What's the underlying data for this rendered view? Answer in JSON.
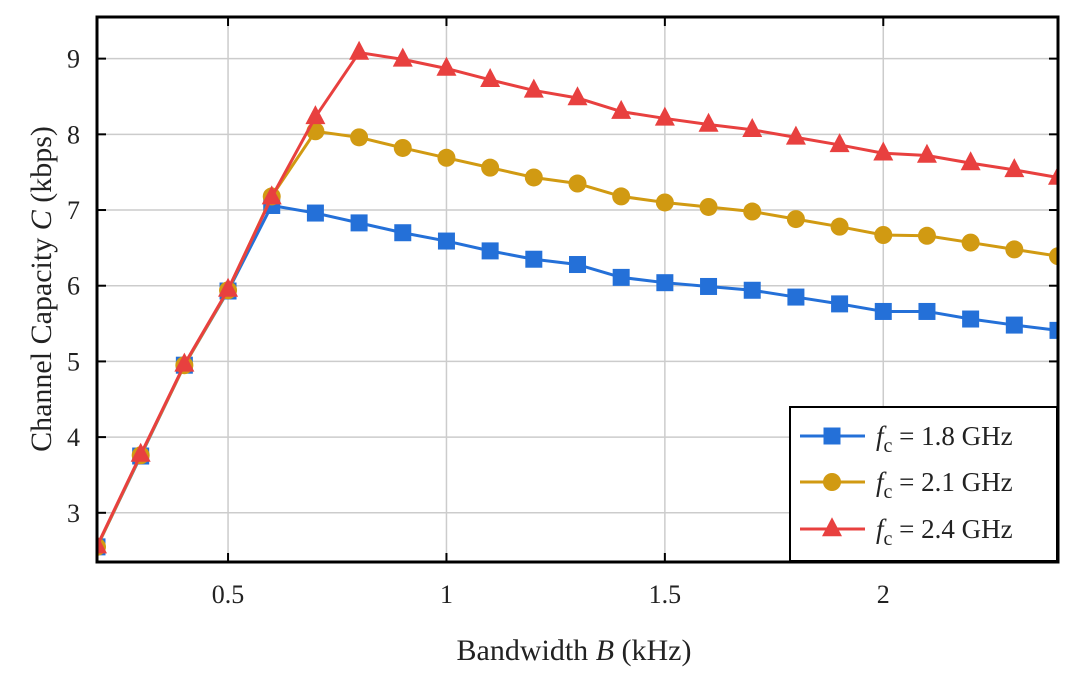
{
  "chart_data": {
    "type": "line",
    "xlabel": {
      "main": "Bandwidth ",
      "var": "B",
      "unit": " (kHz)"
    },
    "ylabel": {
      "main": "Channel Capacity ",
      "var": "C",
      "unit": " (kbps)"
    },
    "xlim": [
      0.2,
      2.4
    ],
    "ylim": [
      2.35,
      9.55
    ],
    "xticks": [
      0.5,
      1,
      1.5,
      2
    ],
    "xtick_labels": [
      "0.5",
      "1",
      "1.5",
      "2"
    ],
    "yticks": [
      3,
      4,
      5,
      6,
      7,
      8,
      9
    ],
    "ytick_labels": [
      "3",
      "4",
      "5",
      "6",
      "7",
      "8",
      "9"
    ],
    "grid": true,
    "legend_position": "bottom-right",
    "x": [
      0.2,
      0.3,
      0.4,
      0.5,
      0.6,
      0.7,
      0.8,
      0.9,
      1.0,
      1.1,
      1.2,
      1.3,
      1.4,
      1.5,
      1.6,
      1.7,
      1.8,
      1.9,
      2.0,
      2.1,
      2.2,
      2.3,
      2.4
    ],
    "series": [
      {
        "name": "f_c = 1.8 GHz",
        "legend": {
          "var": "f",
          "sub": "c",
          "rest": " = 1.8 GHz"
        },
        "color": "#2470d8",
        "marker": "square",
        "values": [
          2.55,
          3.75,
          4.95,
          5.93,
          7.06,
          6.96,
          6.83,
          6.7,
          6.59,
          6.46,
          6.35,
          6.28,
          6.11,
          6.04,
          5.99,
          5.94,
          5.85,
          5.76,
          5.66,
          5.66,
          5.56,
          5.48,
          5.41
        ]
      },
      {
        "name": "f_c = 2.1 GHz",
        "legend": {
          "var": "f",
          "sub": "c",
          "rest": " = 2.1 GHz"
        },
        "color": "#d19a12",
        "marker": "circle",
        "values": [
          2.55,
          3.76,
          4.95,
          5.94,
          7.18,
          8.04,
          7.96,
          7.82,
          7.69,
          7.56,
          7.43,
          7.35,
          7.18,
          7.1,
          7.04,
          6.98,
          6.88,
          6.78,
          6.67,
          6.66,
          6.57,
          6.48,
          6.39
        ]
      },
      {
        "name": "f_c = 2.4 GHz",
        "legend": {
          "var": "f",
          "sub": "c",
          "rest": " = 2.4 GHz"
        },
        "color": "#e8403f",
        "marker": "triangle",
        "values": [
          2.56,
          3.77,
          4.96,
          5.95,
          7.17,
          8.23,
          9.08,
          8.99,
          8.87,
          8.72,
          8.58,
          8.48,
          8.3,
          8.21,
          8.13,
          8.06,
          7.96,
          7.86,
          7.75,
          7.72,
          7.62,
          7.53,
          7.43
        ]
      }
    ]
  }
}
